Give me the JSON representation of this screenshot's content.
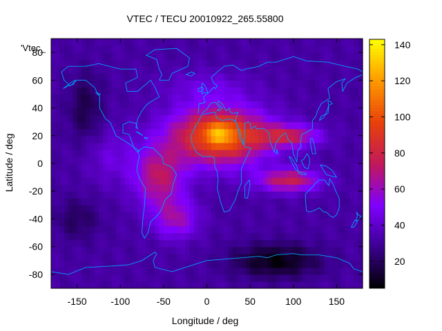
{
  "chart_data": {
    "type": "heatmap",
    "title": "VTEC / TECU 20010922_265.55800",
    "xlabel": "Longitude / deg",
    "ylabel": "Latitude / deg",
    "legend_label": "'Vtec_",
    "xlim": [
      -180,
      180
    ],
    "ylim": [
      -90,
      90
    ],
    "xticks": [
      -150,
      -100,
      -50,
      0,
      50,
      100,
      150
    ],
    "yticks": [
      -80,
      -60,
      -40,
      -20,
      0,
      20,
      40,
      60,
      80
    ],
    "colorbar": {
      "range": [
        5,
        143
      ],
      "ticks": [
        20,
        40,
        60,
        80,
        100,
        120,
        140
      ],
      "palette": [
        "#000000",
        "#3a008f",
        "#7f00ff",
        "#c2185b",
        "#e8410a",
        "#ff9900",
        "#ffff00"
      ]
    },
    "background_tec": 32,
    "coastline_color": "#00a0ff",
    "features": [
      {
        "lon": 15,
        "lat": 20,
        "amp": 75,
        "slon": 55,
        "slat": 20
      },
      {
        "lon": 15,
        "lat": 22,
        "amp": 25,
        "slon": 14,
        "slat": 8
      },
      {
        "lon": 95,
        "lat": 20,
        "amp": 40,
        "slon": 35,
        "slat": 8
      },
      {
        "lon": 95,
        "lat": -12,
        "amp": 45,
        "slon": 35,
        "slat": 8
      },
      {
        "lon": -55,
        "lat": -10,
        "amp": 40,
        "slon": 28,
        "slat": 22
      },
      {
        "lon": -35,
        "lat": -40,
        "amp": 28,
        "slon": 25,
        "slat": 14
      },
      {
        "lon": -110,
        "lat": 5,
        "amp": 12,
        "slon": 30,
        "slat": 20
      },
      {
        "lon": 0,
        "lat": 55,
        "amp": 12,
        "slon": 50,
        "slat": 12
      },
      {
        "lon": -140,
        "lat": 40,
        "amp": -15,
        "slon": 20,
        "slat": 25
      },
      {
        "lon": 80,
        "lat": -70,
        "amp": -25,
        "slon": 50,
        "slat": 12
      },
      {
        "lon": -150,
        "lat": -40,
        "amp": -12,
        "slon": 25,
        "slat": 15
      }
    ]
  }
}
